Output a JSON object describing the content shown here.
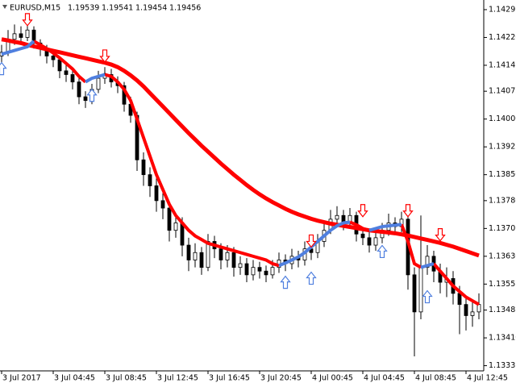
{
  "chart_data": {
    "type": "candlestick",
    "title": "EURUSD,M15",
    "header_values": [
      1.19539,
      1.19541,
      1.19454,
      1.19456
    ],
    "xlim": [
      -0.25,
      74.75
    ],
    "xticks": [
      {
        "value": 0,
        "label": "3 Jul 2017"
      },
      {
        "value": 8,
        "label": "3 Jul 04:45"
      },
      {
        "value": 16,
        "label": "3 Jul 08:45"
      },
      {
        "value": 24,
        "label": "3 Jul 12:45"
      },
      {
        "value": 32,
        "label": "3 Jul 16:45"
      },
      {
        "value": 40,
        "label": "3 Jul 20:45"
      },
      {
        "value": 48,
        "label": "4 Jul 00:45"
      },
      {
        "value": 56,
        "label": "4 Jul 04:45"
      },
      {
        "value": 64,
        "label": "4 Jul 08:45"
      },
      {
        "value": 72,
        "label": "4 Jul 12:45"
      }
    ],
    "ylim": [
      1.13321,
      1.14321
    ],
    "yticks": [
      1.14295,
      {
        "value": 1.1422,
        "label": "1.14220"
      },
      1.14145,
      1.14075,
      {
        "value": 1.14,
        "label": "1.14000"
      },
      1.13925,
      {
        "value": 1.1385,
        "label": "1.13850"
      },
      {
        "value": 1.1378,
        "label": "1.13780"
      },
      1.13705,
      {
        "value": 1.1363,
        "label": "1.13630"
      },
      1.13555,
      1.13485,
      {
        "value": 1.1341,
        "label": "1.13410"
      },
      1.13335
    ],
    "candle_color": "#000000",
    "open": [
      1.1417,
      1.1418,
      1.14215,
      1.1423,
      1.1422,
      1.1424,
      1.14205,
      1.1419,
      1.1417,
      1.1416,
      1.1413,
      1.1412,
      1.141,
      1.1406,
      1.1405,
      1.1408,
      1.1411,
      1.1412,
      1.141,
      1.1409,
      1.1404,
      1.1401,
      1.1389,
      1.1385,
      1.1382,
      1.1378,
      1.1376,
      1.137,
      1.1372,
      1.1366,
      1.1362,
      1.1364,
      1.136,
      1.1367,
      1.1365,
      1.1362,
      1.1364,
      1.136,
      1.1361,
      1.1358,
      1.136,
      1.1359,
      1.1358,
      1.136,
      1.1362,
      1.1361,
      1.1363,
      1.1362,
      1.1365,
      1.1364,
      1.1367,
      1.137,
      1.1373,
      1.1374,
      1.1372,
      1.1374,
      1.1369,
      1.1368,
      1.1366,
      1.1368,
      1.137,
      1.1372,
      1.1371,
      1.1373,
      1.1358,
      1.1348,
      1.136,
      1.1363,
      1.1359,
      1.1356,
      1.1357,
      1.1353,
      1.135,
      1.1347,
      1.1348
    ],
    "high": [
      1.142,
      1.1424,
      1.14255,
      1.1425,
      1.14265,
      1.1425,
      1.14215,
      1.142,
      1.14185,
      1.1417,
      1.1415,
      1.14135,
      1.1411,
      1.14075,
      1.14095,
      1.1413,
      1.1414,
      1.14135,
      1.14115,
      1.141,
      1.1406,
      1.1402,
      1.1391,
      1.1387,
      1.1384,
      1.138,
      1.13775,
      1.1374,
      1.13735,
      1.1368,
      1.13665,
      1.13655,
      1.1369,
      1.13685,
      1.13665,
      1.1366,
      1.13655,
      1.1363,
      1.13625,
      1.1362,
      1.13615,
      1.13605,
      1.1362,
      1.1364,
      1.13635,
      1.1365,
      1.13645,
      1.1367,
      1.13665,
      1.1369,
      1.13725,
      1.13755,
      1.13765,
      1.13755,
      1.1376,
      1.1375,
      1.13705,
      1.13695,
      1.137,
      1.1372,
      1.13745,
      1.13735,
      1.1375,
      1.1374,
      1.136,
      1.1374,
      1.1366,
      1.13645,
      1.1361,
      1.136,
      1.1359,
      1.1355,
      1.1352,
      1.1351,
      1.1353
    ],
    "low": [
      1.1415,
      1.1417,
      1.142,
      1.142,
      1.1421,
      1.1419,
      1.1417,
      1.1415,
      1.1414,
      1.1411,
      1.141,
      1.1408,
      1.1404,
      1.1403,
      1.1404,
      1.1407,
      1.14095,
      1.14085,
      1.1407,
      1.1402,
      1.1399,
      1.1386,
      1.1382,
      1.1379,
      1.1375,
      1.1373,
      1.1367,
      1.1368,
      1.1363,
      1.1359,
      1.136,
      1.1358,
      1.1359,
      1.13625,
      1.13595,
      1.136,
      1.13575,
      1.1358,
      1.1356,
      1.13565,
      1.1357,
      1.1356,
      1.1357,
      1.13585,
      1.1359,
      1.13595,
      1.136,
      1.13605,
      1.1362,
      1.13625,
      1.13655,
      1.1369,
      1.13715,
      1.137,
      1.13705,
      1.1367,
      1.1366,
      1.1364,
      1.13645,
      1.13665,
      1.13685,
      1.1369,
      1.13695,
      1.1354,
      1.1336,
      1.1346,
      1.1358,
      1.1356,
      1.1353,
      1.1352,
      1.135,
      1.1342,
      1.1343,
      1.1344,
      1.1346
    ],
    "close": [
      1.1418,
      1.14215,
      1.1423,
      1.1422,
      1.1424,
      1.14205,
      1.1419,
      1.1417,
      1.1416,
      1.1413,
      1.1412,
      1.141,
      1.1406,
      1.1405,
      1.1408,
      1.1411,
      1.1412,
      1.141,
      1.1409,
      1.1404,
      1.1401,
      1.1389,
      1.1385,
      1.1382,
      1.1378,
      1.1376,
      1.137,
      1.1372,
      1.1366,
      1.1362,
      1.1364,
      1.136,
      1.1367,
      1.1365,
      1.1362,
      1.1364,
      1.136,
      1.1361,
      1.1358,
      1.136,
      1.1359,
      1.1358,
      1.136,
      1.1362,
      1.1361,
      1.1363,
      1.1362,
      1.1365,
      1.1364,
      1.1367,
      1.137,
      1.1373,
      1.1374,
      1.1372,
      1.1374,
      1.1369,
      1.1368,
      1.1366,
      1.1368,
      1.137,
      1.1372,
      1.1371,
      1.1373,
      1.1358,
      1.1348,
      1.136,
      1.1363,
      1.1359,
      1.1356,
      1.1357,
      1.1353,
      1.135,
      1.1347,
      1.1348,
      1.135
    ],
    "series": [
      {
        "color": "#ff0000",
        "width": 5,
        "values": [
          1.14215,
          1.14212,
          1.14208,
          1.14205,
          1.142,
          1.14196,
          1.14192,
          1.14188,
          1.14184,
          1.1418,
          1.14176,
          1.14172,
          1.14168,
          1.14164,
          1.1416,
          1.14156,
          1.14152,
          1.14147,
          1.1414,
          1.1413,
          1.14118,
          1.14104,
          1.14088,
          1.1407,
          1.14052,
          1.14034,
          1.14016,
          1.13998,
          1.1398,
          1.13962,
          1.13945,
          1.13928,
          1.13912,
          1.13896,
          1.1388,
          1.13865,
          1.1385,
          1.13836,
          1.13822,
          1.13809,
          1.13797,
          1.13786,
          1.13776,
          1.13767,
          1.13758,
          1.1375,
          1.13743,
          1.13737,
          1.13731,
          1.13726,
          1.13722,
          1.13718,
          1.13715,
          1.13712,
          1.13709,
          1.13706,
          1.13703,
          1.137,
          1.13698,
          1.13696,
          1.13694,
          1.13692,
          1.13689,
          1.13686,
          1.13682,
          1.13678,
          1.13674,
          1.1367,
          1.13666,
          1.13661,
          1.13656,
          1.1365,
          1.13644,
          1.13638,
          1.13632
        ]
      },
      {
        "color": "#ff0000",
        "width": 4,
        "values": [
          null,
          null,
          null,
          null,
          null,
          1.1421,
          1.142,
          1.1419,
          1.14178,
          1.14165,
          1.1415,
          1.14135,
          1.14115,
          1.141,
          null,
          null,
          1.1412,
          1.14115,
          1.141,
          1.1408,
          1.1405,
          1.14,
          1.1395,
          1.139,
          1.1385,
          1.1381,
          1.1377,
          1.1374,
          1.1372,
          1.137,
          1.13685,
          1.13675,
          1.13665,
          1.1366,
          1.13655,
          1.1365,
          1.13645,
          1.1364,
          1.13635,
          1.1363,
          1.13625,
          1.1362,
          1.1361,
          1.13605,
          null,
          null,
          null,
          null,
          null,
          null,
          null,
          null,
          null,
          null,
          1.13722,
          1.13715,
          1.13705,
          1.137,
          null,
          null,
          null,
          null,
          1.13716,
          1.1367,
          1.1361,
          1.136,
          null,
          1.1361,
          1.1359,
          1.1357,
          1.1355,
          1.13535,
          1.1352,
          1.1351,
          1.135
        ]
      },
      {
        "color": "#4f7fdf",
        "width": 4,
        "values": [
          1.14175,
          1.1418,
          1.14185,
          1.1419,
          1.14195,
          1.1421,
          null,
          null,
          null,
          null,
          null,
          null,
          null,
          1.141,
          1.1411,
          1.14115,
          1.1412,
          null,
          null,
          null,
          null,
          null,
          null,
          null,
          null,
          null,
          null,
          null,
          null,
          null,
          null,
          null,
          null,
          null,
          null,
          null,
          null,
          null,
          null,
          null,
          null,
          null,
          null,
          1.13605,
          1.13612,
          1.1362,
          1.13628,
          1.1364,
          1.13655,
          1.1367,
          1.13685,
          1.137,
          1.13712,
          1.1372,
          1.13722,
          null,
          null,
          1.137,
          1.13705,
          1.1371,
          1.13712,
          1.13714,
          1.13716,
          null,
          null,
          1.136,
          1.13605,
          1.1361,
          null,
          null,
          null,
          null,
          null,
          null,
          null
        ]
      }
    ],
    "arrows_down": {
      "color": "#ff0000",
      "x": [
        4,
        16,
        48,
        56,
        63,
        68
      ],
      "y": [
        1.14267,
        1.14169,
        1.1367,
        1.13752,
        1.13752,
        1.13687
      ]
    },
    "arrows_up": {
      "color": "#4f7fdf",
      "x": [
        0,
        14,
        44,
        48,
        59,
        66
      ],
      "y": [
        1.14137,
        1.14065,
        1.13561,
        1.13572,
        1.13644,
        1.13522
      ]
    }
  }
}
